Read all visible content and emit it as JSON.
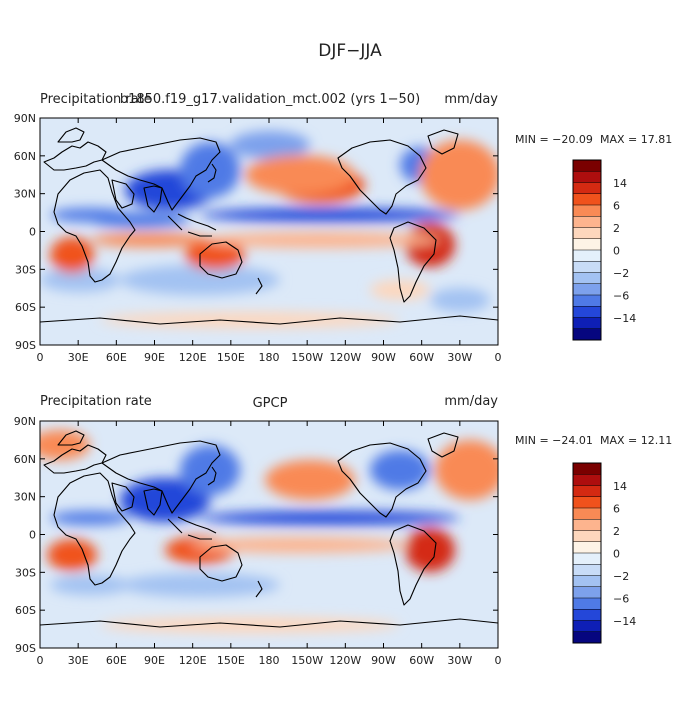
{
  "page_title": "DJF−JJA",
  "colorbar_levels": [
    "14",
    "6",
    "2",
    "0",
    "−2",
    "−6",
    "−14"
  ],
  "colorbar_colors": [
    "#7a0000",
    "#ae0e0e",
    "#d42a12",
    "#f0521c",
    "#f98a55",
    "#fdb48e",
    "#fdd7bd",
    "#fdf3e6",
    "#e4f0fb",
    "#c8dcf7",
    "#a3c2f2",
    "#7da1ec",
    "#4f7ae6",
    "#2447d9",
    "#0e1fb6",
    "#06067f"
  ],
  "chart_data": [
    {
      "type": "heatmap",
      "title_left": "Precipitation rate",
      "title_center": "b1850.f19_g17.validation_mct.002 (yrs 1−50)",
      "title_right": "mm/day",
      "min_label": "MIN = −20.09",
      "max_label": "MAX =  17.81",
      "min": -20.09,
      "max": 17.81,
      "x_ticks": [
        "0",
        "30E",
        "60E",
        "90E",
        "120E",
        "150E",
        "180",
        "150W",
        "120W",
        "90W",
        "60W",
        "30W",
        "0"
      ],
      "y_ticks": [
        "90N",
        "60N",
        "30N",
        "0",
        "30S",
        "60S",
        "90S"
      ]
    },
    {
      "type": "heatmap",
      "title_left": "Precipitation rate",
      "title_center": "GPCP",
      "title_right": "mm/day",
      "min_label": "MIN = −24.01",
      "max_label": "MAX =  12.11",
      "min": -24.01,
      "max": 12.11,
      "x_ticks": [
        "0",
        "30E",
        "60E",
        "90E",
        "120E",
        "150E",
        "180",
        "150W",
        "120W",
        "90W",
        "60W",
        "30W",
        "0"
      ],
      "y_ticks": [
        "90N",
        "60N",
        "30N",
        "0",
        "30S",
        "60S",
        "90S"
      ]
    }
  ]
}
